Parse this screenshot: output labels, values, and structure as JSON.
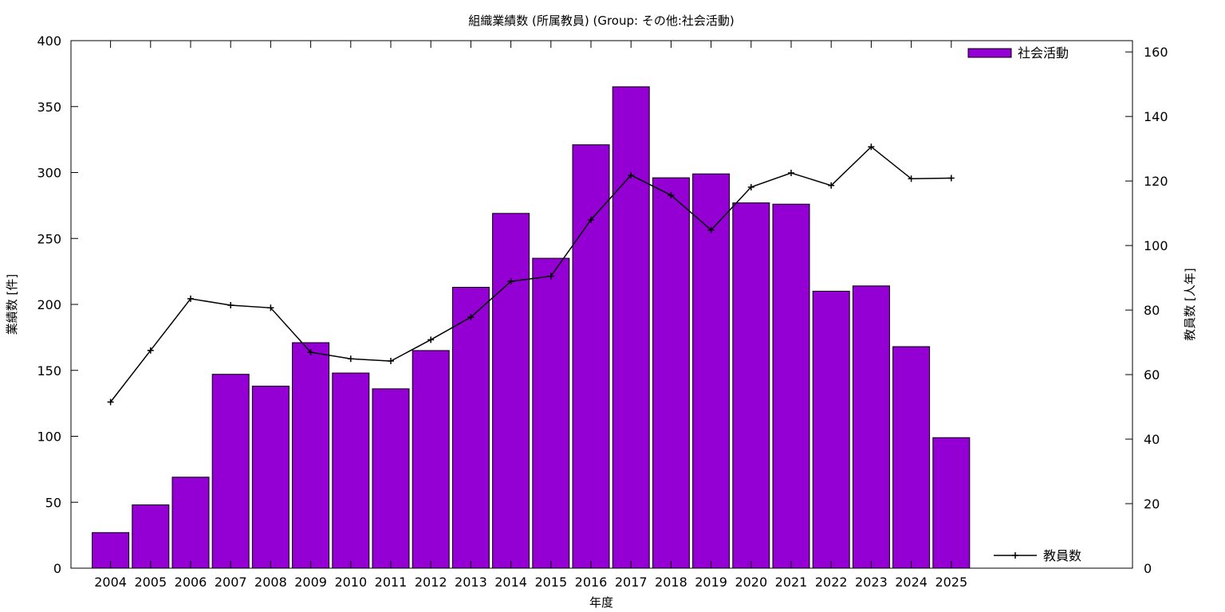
{
  "chart_data": {
    "type": "bar",
    "title": "組織業績数 (所属教員) (Group: その他:社会活動)",
    "xlabel": "年度",
    "ylabel": "業績数 [件]",
    "y2label": "教員数 [人年]",
    "ylim": [
      0,
      400
    ],
    "y2lim": [
      0,
      163.5
    ],
    "yticks": [
      0,
      50,
      100,
      150,
      200,
      250,
      300,
      350,
      400
    ],
    "y2ticks": [
      0,
      20,
      40,
      60,
      80,
      100,
      120,
      140,
      160
    ],
    "categories": [
      "2004",
      "2005",
      "2006",
      "2007",
      "2008",
      "2009",
      "2010",
      "2011",
      "2012",
      "2013",
      "2014",
      "2015",
      "2016",
      "2017",
      "2018",
      "2019",
      "2020",
      "2021",
      "2022",
      "2023",
      "2024",
      "2025"
    ],
    "series": [
      {
        "name": "社会活動",
        "type": "bar",
        "axis": "left",
        "color": "#9400d3",
        "values": [
          27,
          48,
          69,
          147,
          138,
          171,
          148,
          136,
          165,
          213,
          269,
          235,
          321,
          365,
          296,
          299,
          277,
          276,
          210,
          214,
          168,
          99
        ]
      },
      {
        "name": "教員数",
        "type": "line",
        "axis": "right",
        "color": "#000000",
        "values": [
          51.5,
          67.5,
          83.5,
          81.5,
          80.7,
          66.9,
          64.9,
          64.2,
          70.8,
          77.8,
          88.9,
          90.5,
          108.0,
          121.8,
          115.6,
          104.8,
          118.1,
          122.5,
          118.6,
          130.6,
          120.7,
          120.9
        ]
      }
    ],
    "legend": "top-right (bars), bottom-right (line)",
    "grid": false
  }
}
